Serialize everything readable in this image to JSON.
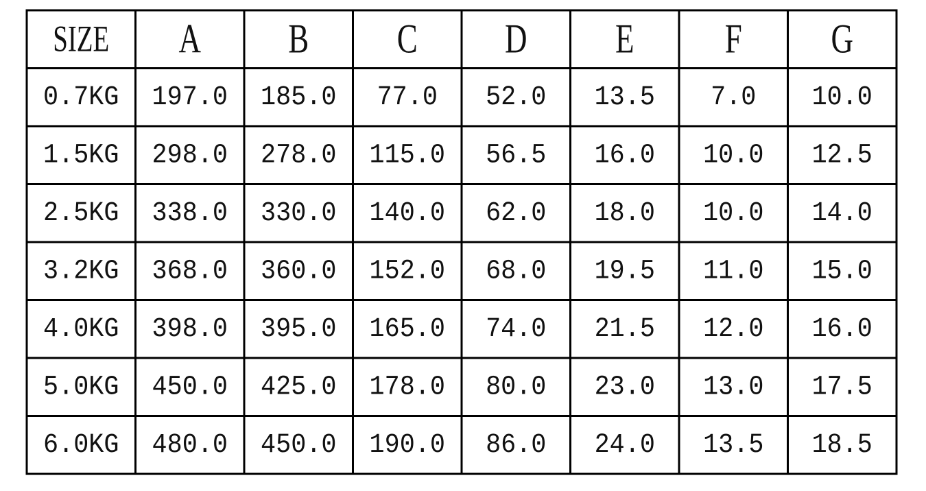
{
  "table": {
    "header": [
      "SIZE",
      "A",
      "B",
      "C",
      "D",
      "E",
      "F",
      "G"
    ],
    "rows": [
      [
        "0.7KG",
        "197.0",
        "185.0",
        "77.0",
        "52.0",
        "13.5",
        "7.0",
        "10.0"
      ],
      [
        "1.5KG",
        "298.0",
        "278.0",
        "115.0",
        "56.5",
        "16.0",
        "10.0",
        "12.5"
      ],
      [
        "2.5KG",
        "338.0",
        "330.0",
        "140.0",
        "62.0",
        "18.0",
        "10.0",
        "14.0"
      ],
      [
        "3.2KG",
        "368.0",
        "360.0",
        "152.0",
        "68.0",
        "19.5",
        "11.0",
        "15.0"
      ],
      [
        "4.0KG",
        "398.0",
        "395.0",
        "165.0",
        "74.0",
        "21.5",
        "12.0",
        "16.0"
      ],
      [
        "5.0KG",
        "450.0",
        "425.0",
        "178.0",
        "80.0",
        "23.0",
        "13.0",
        "17.5"
      ],
      [
        "6.0KG",
        "480.0",
        "450.0",
        "190.0",
        "86.0",
        "24.0",
        "13.5",
        "18.5"
      ]
    ]
  }
}
